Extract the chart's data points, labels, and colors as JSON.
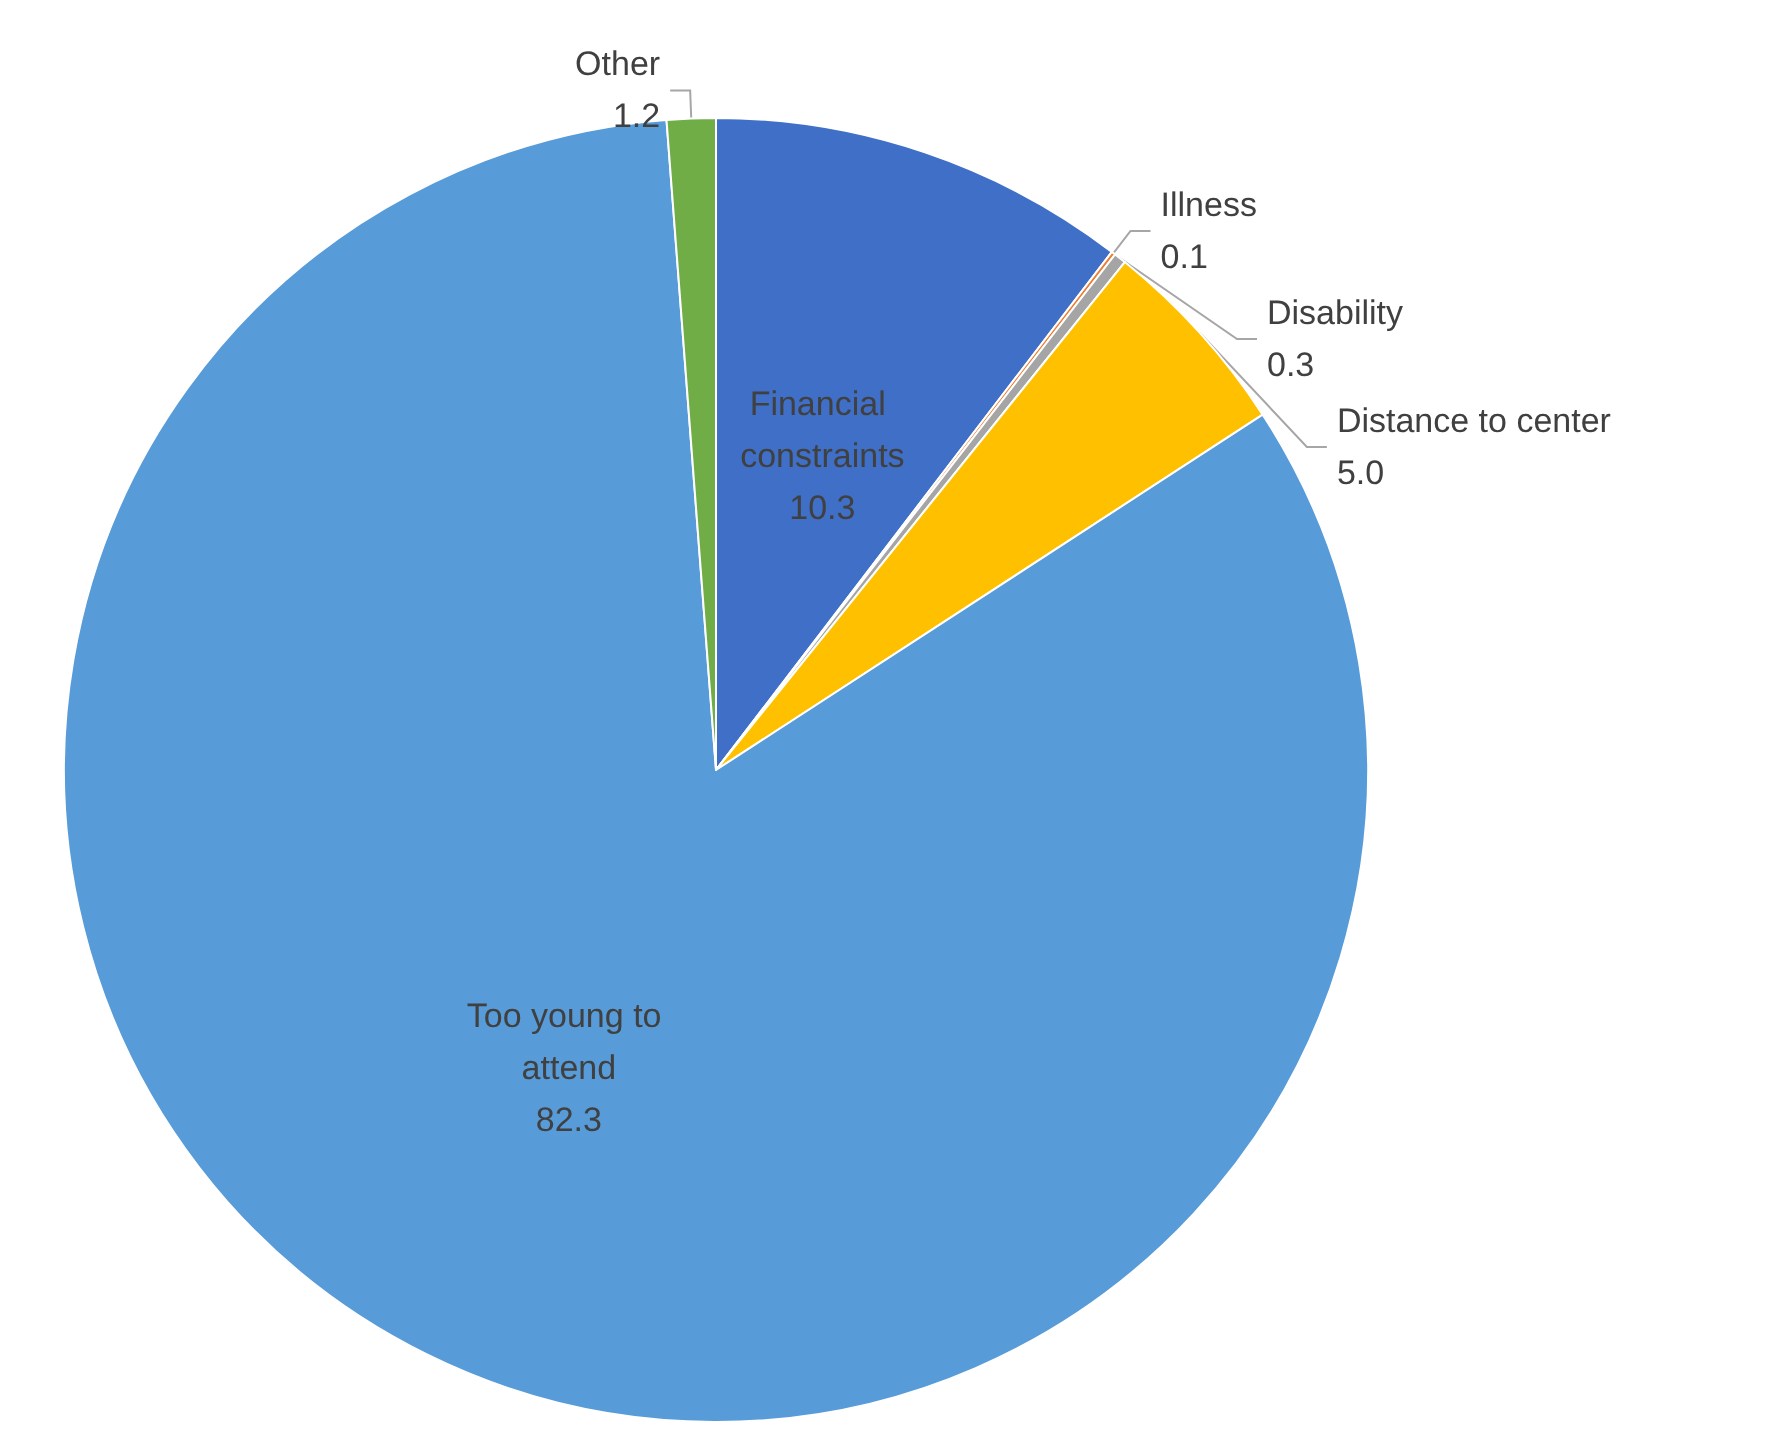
{
  "chart_data": {
    "type": "pie",
    "categories": [
      "Financial constraints",
      "Illness",
      "Disability",
      "Distance to center",
      "Too young to attend",
      "Other"
    ],
    "values": [
      10.3,
      0.1,
      0.3,
      5.0,
      82.3,
      1.2
    ],
    "value_labels": [
      "10.3",
      "0.1",
      "0.3",
      "5.0",
      "82.3",
      "1.2"
    ],
    "colors": [
      "#3f6fc6",
      "#ed7d31",
      "#a5a5a5",
      "#ffc000",
      "#579bd8",
      "#70ad47"
    ],
    "legend": false
  }
}
